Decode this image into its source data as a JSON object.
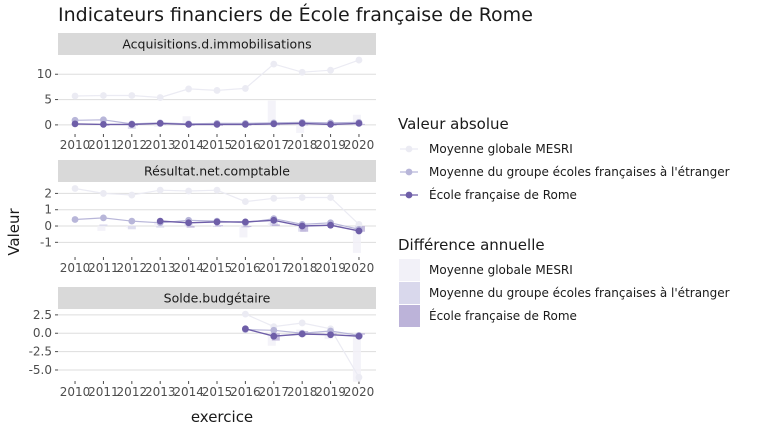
{
  "chart_data": {
    "type": "line",
    "title": "Indicateurs financiers de École française de Rome",
    "xlabel": "exercice",
    "ylabel": "Valeur",
    "x": [
      2010,
      2011,
      2012,
      2013,
      2014,
      2015,
      2016,
      2017,
      2018,
      2019,
      2020
    ],
    "series_meta": [
      {
        "name": "Moyenne globale MESRI",
        "color": "#ebebf3",
        "bar_color": "#f2f1f8",
        "marker": "circle"
      },
      {
        "name": "Moyenne du groupe écoles françaises à l'étranger",
        "color": "#b8b6d9",
        "bar_color": "#d9d8ec",
        "marker": "circle"
      },
      {
        "name": "École française de Rome",
        "color": "#6e5ea8",
        "bar_color": "#bcb3d9",
        "marker": "circle"
      }
    ],
    "legend": {
      "position": "right",
      "absolute_title": "Valeur absolue",
      "difference_title": "Différence annuelle"
    },
    "panels": [
      {
        "strip": "Acquisitions.d.immobilisations",
        "ylim": [
          -1.8,
          13.8
        ],
        "yticks": [
          0,
          5,
          10
        ],
        "ytick_labels": [
          "0",
          "5",
          "10"
        ],
        "series": [
          {
            "name": "Moyenne globale MESRI",
            "values": [
              5.7,
              5.8,
              5.8,
              5.4,
              7.1,
              6.8,
              7.2,
              12.0,
              10.4,
              10.8,
              12.8
            ],
            "diffs": [
              null,
              0.1,
              0.0,
              -0.4,
              1.7,
              -0.3,
              0.4,
              4.8,
              -1.6,
              0.4,
              2.0
            ]
          },
          {
            "name": "Moyenne du groupe écoles françaises à l'étranger",
            "values": [
              0.9,
              1.0,
              0.2,
              0.4,
              0.2,
              0.3,
              0.3,
              0.4,
              0.5,
              0.4,
              0.5
            ],
            "diffs": [
              null,
              0.1,
              -0.8,
              0.2,
              -0.2,
              0.1,
              0.0,
              0.1,
              0.1,
              -0.1,
              0.1
            ]
          },
          {
            "name": "École française de Rome",
            "values": [
              0.2,
              0.1,
              0.1,
              0.3,
              0.1,
              0.1,
              0.1,
              0.2,
              0.3,
              0.1,
              0.3
            ],
            "diffs": [
              null,
              -0.1,
              0.0,
              0.2,
              -0.2,
              0.0,
              0.0,
              0.1,
              0.1,
              -0.2,
              0.2
            ]
          }
        ]
      },
      {
        "strip": "Résultat.net.comptable",
        "ylim": [
          -1.9,
          2.7
        ],
        "yticks": [
          -1,
          0,
          1,
          2
        ],
        "ytick_labels": [
          "-1",
          "0",
          "1",
          "2"
        ],
        "series": [
          {
            "name": "Moyenne globale MESRI",
            "values": [
              2.3,
              2.0,
              1.9,
              2.2,
              2.15,
              2.2,
              1.5,
              1.7,
              1.75,
              1.75,
              0.1
            ],
            "diffs": [
              null,
              -0.3,
              -0.1,
              0.3,
              -0.05,
              0.05,
              -0.7,
              0.2,
              0.05,
              0.0,
              -1.65
            ]
          },
          {
            "name": "Moyenne du groupe écoles françaises à l'étranger",
            "values": [
              0.4,
              0.5,
              0.3,
              0.2,
              0.35,
              0.3,
              0.2,
              0.45,
              0.1,
              0.2,
              -0.2
            ],
            "diffs": [
              null,
              0.1,
              -0.2,
              -0.1,
              0.15,
              -0.05,
              -0.1,
              0.25,
              -0.35,
              0.1,
              -0.4
            ]
          },
          {
            "name": "École française de Rome",
            "values": [
              null,
              null,
              null,
              0.3,
              0.2,
              0.25,
              0.25,
              0.35,
              0.0,
              0.05,
              -0.3
            ],
            "diffs": [
              null,
              null,
              null,
              null,
              -0.1,
              0.05,
              0.0,
              0.1,
              -0.35,
              0.05,
              -0.35
            ]
          }
        ]
      },
      {
        "strip": "Solde.budgétaire",
        "ylim": [
          -6.5,
          3.3
        ],
        "yticks": [
          2.5,
          0,
          -2.5,
          -5
        ],
        "ytick_labels": [
          "2.5",
          "0.0",
          "-2.5",
          "-5.0"
        ],
        "series": [
          {
            "name": "Moyenne globale MESRI",
            "values": [
              null,
              null,
              null,
              null,
              null,
              null,
              2.6,
              0.9,
              1.4,
              0.6,
              -6.0
            ],
            "diffs": [
              null,
              null,
              null,
              null,
              null,
              null,
              null,
              -1.7,
              0.5,
              -0.8,
              -6.6
            ]
          },
          {
            "name": "Moyenne du groupe écoles françaises à l'étranger",
            "values": [
              null,
              null,
              null,
              null,
              null,
              null,
              0.5,
              0.4,
              0.0,
              0.3,
              -0.3
            ],
            "diffs": [
              null,
              null,
              null,
              null,
              null,
              null,
              null,
              -0.1,
              -0.4,
              0.3,
              -0.6
            ]
          },
          {
            "name": "École française de Rome",
            "values": [
              null,
              null,
              null,
              null,
              null,
              null,
              0.6,
              -0.4,
              -0.1,
              -0.2,
              -0.4
            ],
            "diffs": [
              null,
              null,
              null,
              null,
              null,
              null,
              null,
              -1.0,
              0.3,
              -0.1,
              -0.2
            ]
          }
        ]
      }
    ]
  }
}
